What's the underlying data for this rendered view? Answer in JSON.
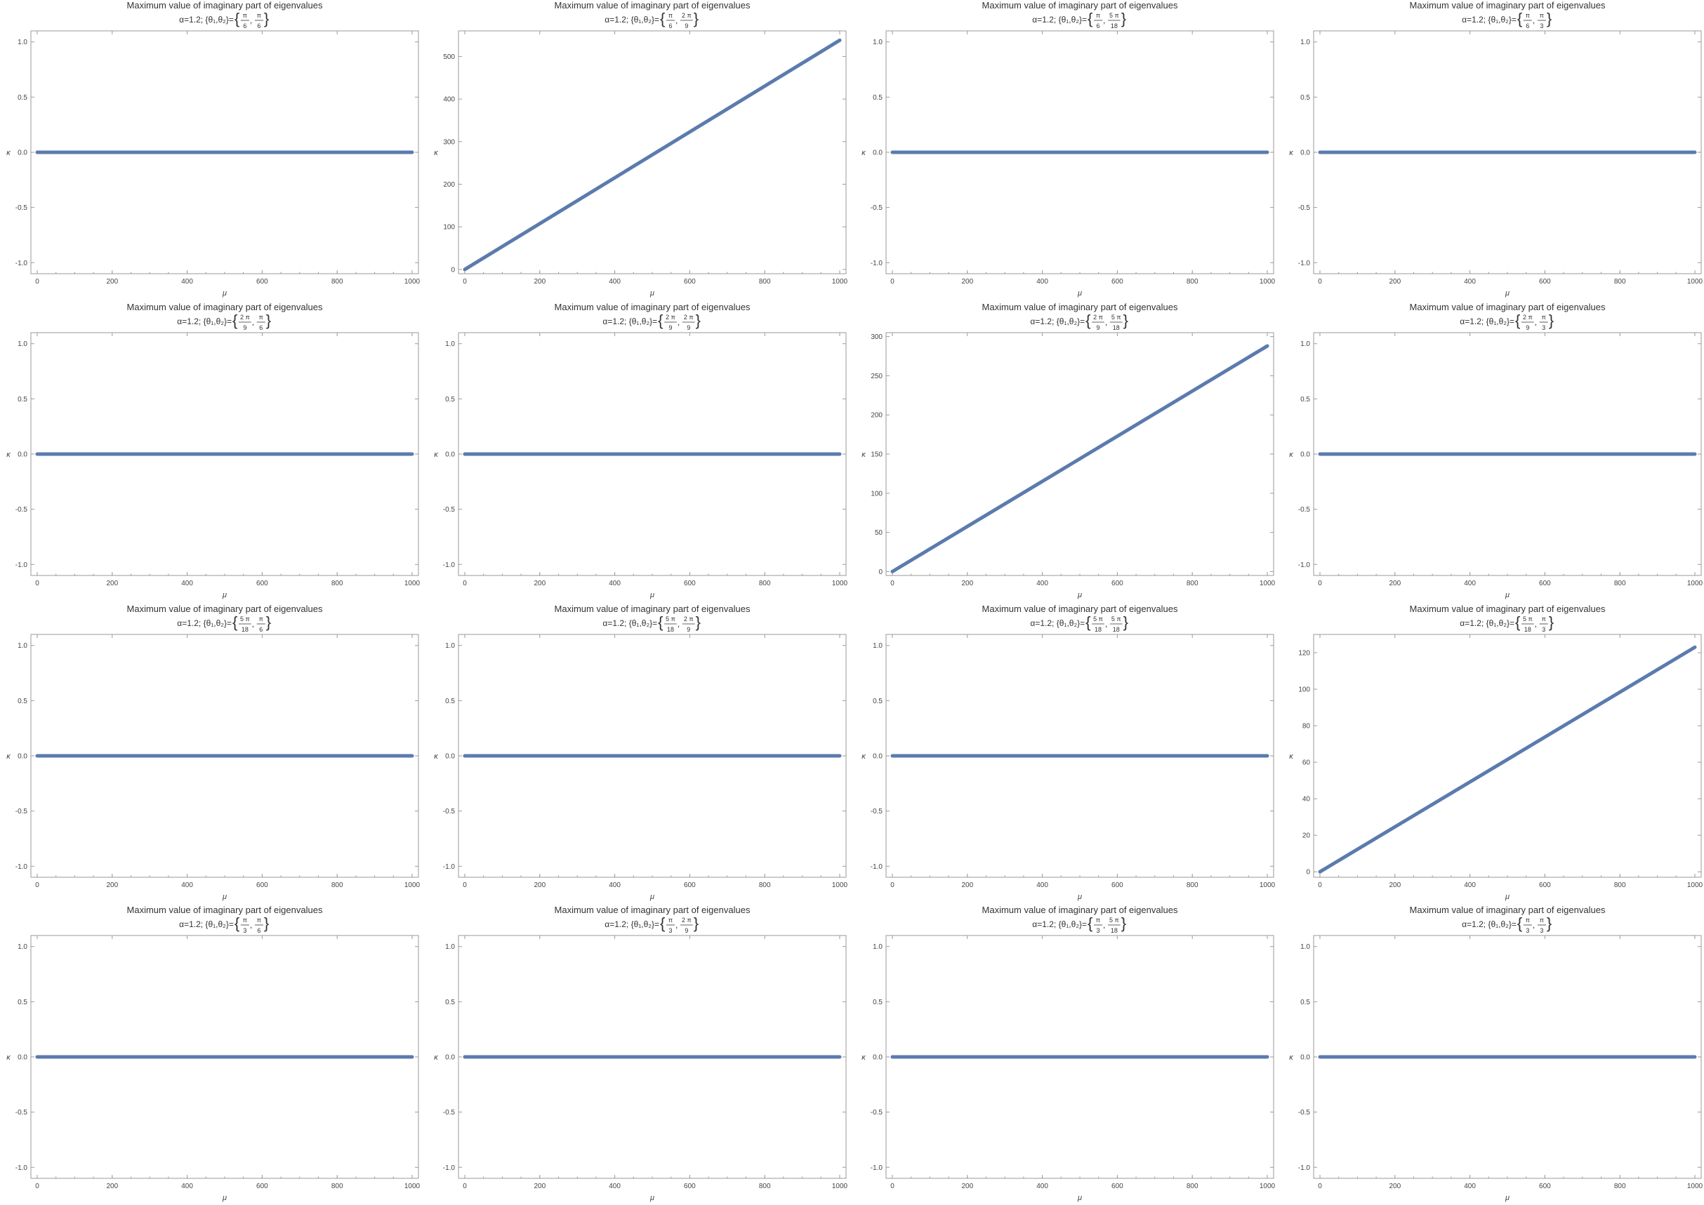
{
  "colors": {
    "series": "#5b7bae"
  },
  "chart_data": [
    {
      "type": "line",
      "title": "Maximum value of imaginary part of eigenvalues",
      "subtitle": {
        "prefix": "α=1.2; {θ₁,θ₂}=",
        "theta1": {
          "num": "π",
          "den": "6"
        },
        "theta2": {
          "num": "π",
          "den": "6"
        }
      },
      "xlabel": "μ",
      "ylabel": "κ",
      "xlim": [
        0,
        1000
      ],
      "ylim": [
        -1.1,
        1.1
      ],
      "xticks": [
        0,
        200,
        400,
        600,
        800,
        1000
      ],
      "yticks": [
        "-1.0",
        "-0.5",
        "0.0",
        "0.5",
        "1.0"
      ],
      "x": [
        0,
        1000
      ],
      "y": [
        0,
        0
      ]
    },
    {
      "type": "line",
      "title": "Maximum value of imaginary part of eigenvalues",
      "subtitle": {
        "prefix": "α=1.2; {θ₁,θ₂}=",
        "theta1": {
          "num": "π",
          "den": "6"
        },
        "theta2": {
          "num": "2 π",
          "den": "9"
        }
      },
      "xlabel": "μ",
      "ylabel": "κ",
      "xlim": [
        0,
        1000
      ],
      "ylim": [
        -10,
        560
      ],
      "xticks": [
        0,
        200,
        400,
        600,
        800,
        1000
      ],
      "yticks": [
        "0",
        "100",
        "200",
        "300",
        "400",
        "500"
      ],
      "x": [
        0,
        1000
      ],
      "y": [
        0,
        538
      ]
    },
    {
      "type": "line",
      "title": "Maximum value of imaginary part of eigenvalues",
      "subtitle": {
        "prefix": "α=1.2; {θ₁,θ₂}=",
        "theta1": {
          "num": "π",
          "den": "6"
        },
        "theta2": {
          "num": "5 π",
          "den": "18"
        }
      },
      "xlabel": "μ",
      "ylabel": "κ",
      "xlim": [
        0,
        1000
      ],
      "ylim": [
        -1.1,
        1.1
      ],
      "xticks": [
        0,
        200,
        400,
        600,
        800,
        1000
      ],
      "yticks": [
        "-1.0",
        "-0.5",
        "0.0",
        "0.5",
        "1.0"
      ],
      "x": [
        0,
        1000
      ],
      "y": [
        0,
        0
      ]
    },
    {
      "type": "line",
      "title": "Maximum value of imaginary part of eigenvalues",
      "subtitle": {
        "prefix": "α=1.2; {θ₁,θ₂}=",
        "theta1": {
          "num": "π",
          "den": "6"
        },
        "theta2": {
          "num": "π",
          "den": "3"
        }
      },
      "xlabel": "μ",
      "ylabel": "κ",
      "xlim": [
        0,
        1000
      ],
      "ylim": [
        -1.1,
        1.1
      ],
      "xticks": [
        0,
        200,
        400,
        600,
        800,
        1000
      ],
      "yticks": [
        "-1.0",
        "-0.5",
        "0.0",
        "0.5",
        "1.0"
      ],
      "x": [
        0,
        1000
      ],
      "y": [
        0,
        0
      ]
    },
    {
      "type": "line",
      "title": "Maximum value of imaginary part of eigenvalues",
      "subtitle": {
        "prefix": "α=1.2; {θ₁,θ₂}=",
        "theta1": {
          "num": "2 π",
          "den": "9"
        },
        "theta2": {
          "num": "π",
          "den": "6"
        }
      },
      "xlabel": "μ",
      "ylabel": "κ",
      "xlim": [
        0,
        1000
      ],
      "ylim": [
        -1.1,
        1.1
      ],
      "xticks": [
        0,
        200,
        400,
        600,
        800,
        1000
      ],
      "yticks": [
        "-1.0",
        "-0.5",
        "0.0",
        "0.5",
        "1.0"
      ],
      "x": [
        0,
        1000
      ],
      "y": [
        0,
        0
      ]
    },
    {
      "type": "line",
      "title": "Maximum value of imaginary part of eigenvalues",
      "subtitle": {
        "prefix": "α=1.2; {θ₁,θ₂}=",
        "theta1": {
          "num": "2 π",
          "den": "9"
        },
        "theta2": {
          "num": "2 π",
          "den": "9"
        }
      },
      "xlabel": "μ",
      "ylabel": "κ",
      "xlim": [
        0,
        1000
      ],
      "ylim": [
        -1.1,
        1.1
      ],
      "xticks": [
        0,
        200,
        400,
        600,
        800,
        1000
      ],
      "yticks": [
        "-1.0",
        "-0.5",
        "0.0",
        "0.5",
        "1.0"
      ],
      "x": [
        0,
        1000
      ],
      "y": [
        0,
        0
      ]
    },
    {
      "type": "line",
      "title": "Maximum value of imaginary part of eigenvalues",
      "subtitle": {
        "prefix": "α=1.2; {θ₁,θ₂}=",
        "theta1": {
          "num": "2 π",
          "den": "9"
        },
        "theta2": {
          "num": "5 π",
          "den": "18"
        }
      },
      "xlabel": "μ",
      "ylabel": "κ",
      "xlim": [
        0,
        1000
      ],
      "ylim": [
        -5,
        305
      ],
      "xticks": [
        0,
        200,
        400,
        600,
        800,
        1000
      ],
      "yticks": [
        "0",
        "50",
        "100",
        "150",
        "200",
        "250",
        "300"
      ],
      "x": [
        0,
        1000
      ],
      "y": [
        0,
        288
      ]
    },
    {
      "type": "line",
      "title": "Maximum value of imaginary part of eigenvalues",
      "subtitle": {
        "prefix": "α=1.2; {θ₁,θ₂}=",
        "theta1": {
          "num": "2 π",
          "den": "9"
        },
        "theta2": {
          "num": "π",
          "den": "3"
        }
      },
      "xlabel": "μ",
      "ylabel": "κ",
      "xlim": [
        0,
        1000
      ],
      "ylim": [
        -1.1,
        1.1
      ],
      "xticks": [
        0,
        200,
        400,
        600,
        800,
        1000
      ],
      "yticks": [
        "-1.0",
        "-0.5",
        "0.0",
        "0.5",
        "1.0"
      ],
      "x": [
        0,
        1000
      ],
      "y": [
        0,
        0
      ]
    },
    {
      "type": "line",
      "title": "Maximum value of imaginary part of eigenvalues",
      "subtitle": {
        "prefix": "α=1.2; {θ₁,θ₂}=",
        "theta1": {
          "num": "5 π",
          "den": "18"
        },
        "theta2": {
          "num": "π",
          "den": "6"
        }
      },
      "xlabel": "μ",
      "ylabel": "κ",
      "xlim": [
        0,
        1000
      ],
      "ylim": [
        -1.1,
        1.1
      ],
      "xticks": [
        0,
        200,
        400,
        600,
        800,
        1000
      ],
      "yticks": [
        "-1.0",
        "-0.5",
        "0.0",
        "0.5",
        "1.0"
      ],
      "x": [
        0,
        1000
      ],
      "y": [
        0,
        0
      ]
    },
    {
      "type": "line",
      "title": "Maximum value of imaginary part of eigenvalues",
      "subtitle": {
        "prefix": "α=1.2; {θ₁,θ₂}=",
        "theta1": {
          "num": "5 π",
          "den": "18"
        },
        "theta2": {
          "num": "2 π",
          "den": "9"
        }
      },
      "xlabel": "μ",
      "ylabel": "κ",
      "xlim": [
        0,
        1000
      ],
      "ylim": [
        -1.1,
        1.1
      ],
      "xticks": [
        0,
        200,
        400,
        600,
        800,
        1000
      ],
      "yticks": [
        "-1.0",
        "-0.5",
        "0.0",
        "0.5",
        "1.0"
      ],
      "x": [
        0,
        1000
      ],
      "y": [
        0,
        0
      ]
    },
    {
      "type": "line",
      "title": "Maximum value of imaginary part of eigenvalues",
      "subtitle": {
        "prefix": "α=1.2; {θ₁,θ₂}=",
        "theta1": {
          "num": "5 π",
          "den": "18"
        },
        "theta2": {
          "num": "5 π",
          "den": "18"
        }
      },
      "xlabel": "μ",
      "ylabel": "κ",
      "xlim": [
        0,
        1000
      ],
      "ylim": [
        -1.1,
        1.1
      ],
      "xticks": [
        0,
        200,
        400,
        600,
        800,
        1000
      ],
      "yticks": [
        "-1.0",
        "-0.5",
        "0.0",
        "0.5",
        "1.0"
      ],
      "x": [
        0,
        1000
      ],
      "y": [
        0,
        0
      ]
    },
    {
      "type": "line",
      "title": "Maximum value of imaginary part of eigenvalues",
      "subtitle": {
        "prefix": "α=1.2; {θ₁,θ₂}=",
        "theta1": {
          "num": "5 π",
          "den": "18"
        },
        "theta2": {
          "num": "π",
          "den": "3"
        }
      },
      "xlabel": "μ",
      "ylabel": "κ",
      "xlim": [
        0,
        1000
      ],
      "ylim": [
        -3,
        130
      ],
      "xticks": [
        0,
        200,
        400,
        600,
        800,
        1000
      ],
      "yticks": [
        "0",
        "20",
        "40",
        "60",
        "80",
        "100",
        "120"
      ],
      "x": [
        0,
        1000
      ],
      "y": [
        0,
        123
      ]
    },
    {
      "type": "line",
      "title": "Maximum value of imaginary part of eigenvalues",
      "subtitle": {
        "prefix": "α=1.2; {θ₁,θ₂}=",
        "theta1": {
          "num": "π",
          "den": "3"
        },
        "theta2": {
          "num": "π",
          "den": "6"
        }
      },
      "xlabel": "μ",
      "ylabel": "κ",
      "xlim": [
        0,
        1000
      ],
      "ylim": [
        -1.1,
        1.1
      ],
      "xticks": [
        0,
        200,
        400,
        600,
        800,
        1000
      ],
      "yticks": [
        "-1.0",
        "-0.5",
        "0.0",
        "0.5",
        "1.0"
      ],
      "x": [
        0,
        1000
      ],
      "y": [
        0,
        0
      ]
    },
    {
      "type": "line",
      "title": "Maximum value of imaginary part of eigenvalues",
      "subtitle": {
        "prefix": "α=1.2; {θ₁,θ₂}=",
        "theta1": {
          "num": "π",
          "den": "3"
        },
        "theta2": {
          "num": "2 π",
          "den": "9"
        }
      },
      "xlabel": "μ",
      "ylabel": "κ",
      "xlim": [
        0,
        1000
      ],
      "ylim": [
        -1.1,
        1.1
      ],
      "xticks": [
        0,
        200,
        400,
        600,
        800,
        1000
      ],
      "yticks": [
        "-1.0",
        "-0.5",
        "0.0",
        "0.5",
        "1.0"
      ],
      "x": [
        0,
        1000
      ],
      "y": [
        0,
        0
      ]
    },
    {
      "type": "line",
      "title": "Maximum value of imaginary part of eigenvalues",
      "subtitle": {
        "prefix": "α=1.2; {θ₁,θ₂}=",
        "theta1": {
          "num": "π",
          "den": "3"
        },
        "theta2": {
          "num": "5 π",
          "den": "18"
        }
      },
      "xlabel": "μ",
      "ylabel": "κ",
      "xlim": [
        0,
        1000
      ],
      "ylim": [
        -1.1,
        1.1
      ],
      "xticks": [
        0,
        200,
        400,
        600,
        800,
        1000
      ],
      "yticks": [
        "-1.0",
        "-0.5",
        "0.0",
        "0.5",
        "1.0"
      ],
      "x": [
        0,
        1000
      ],
      "y": [
        0,
        0
      ]
    },
    {
      "type": "line",
      "title": "Maximum value of imaginary part of eigenvalues",
      "subtitle": {
        "prefix": "α=1.2; {θ₁,θ₂}=",
        "theta1": {
          "num": "π",
          "den": "3"
        },
        "theta2": {
          "num": "π",
          "den": "3"
        }
      },
      "xlabel": "μ",
      "ylabel": "κ",
      "xlim": [
        0,
        1000
      ],
      "ylim": [
        -1.1,
        1.1
      ],
      "xticks": [
        0,
        200,
        400,
        600,
        800,
        1000
      ],
      "yticks": [
        "-1.0",
        "-0.5",
        "0.0",
        "0.5",
        "1.0"
      ],
      "x": [
        0,
        1000
      ],
      "y": [
        0,
        0
      ]
    }
  ]
}
